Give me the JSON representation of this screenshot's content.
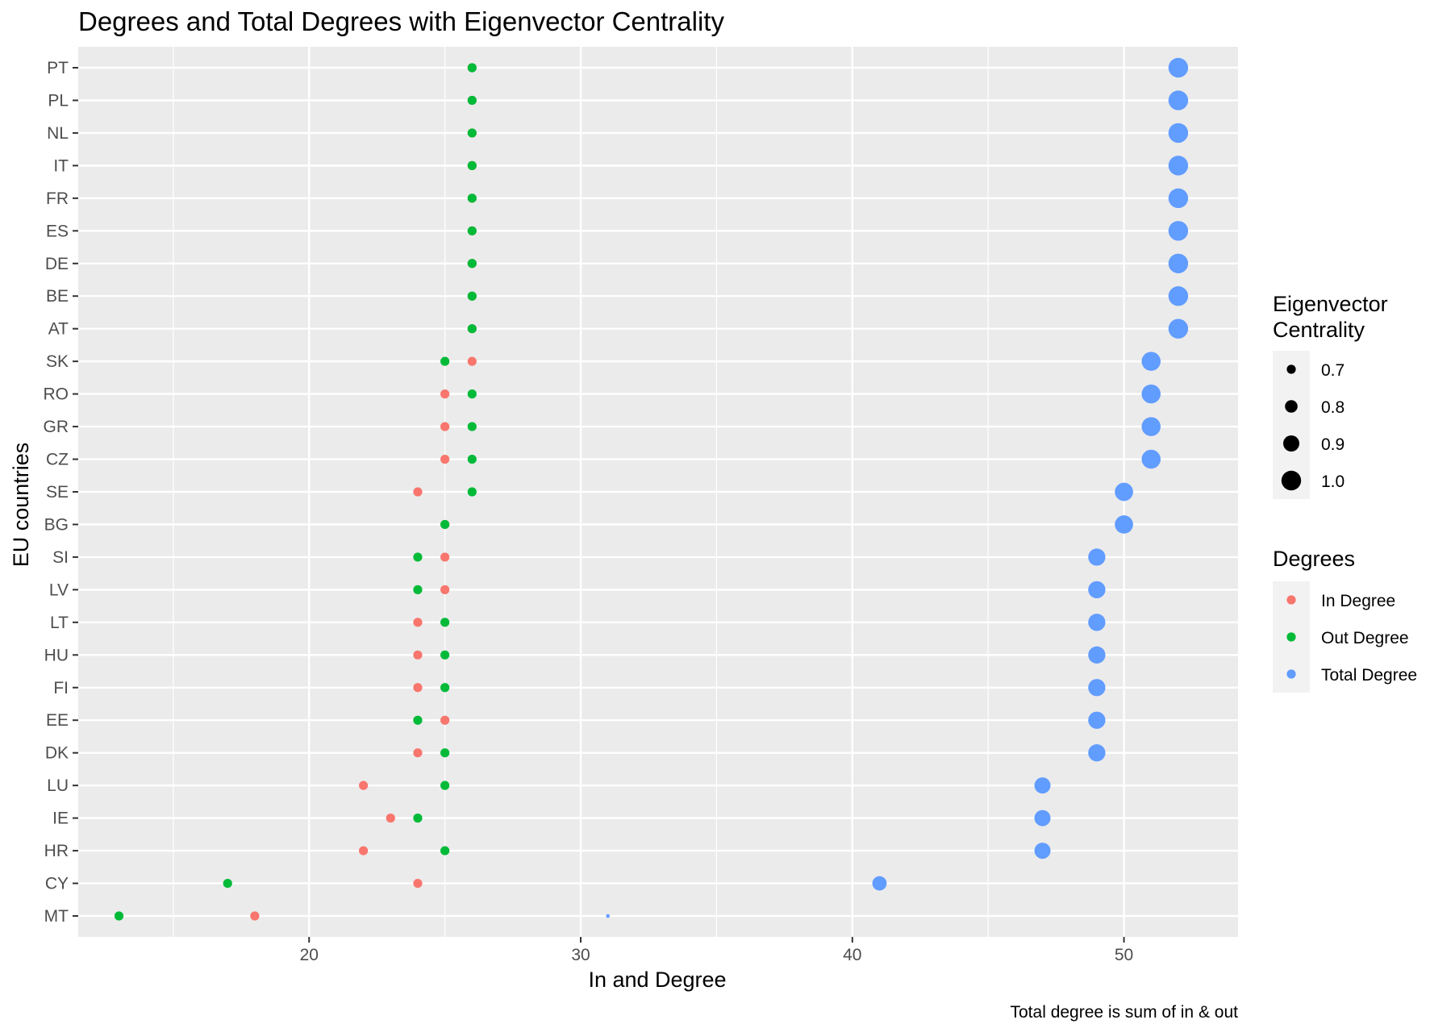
{
  "chart_data": {
    "type": "scatter",
    "title": "Degrees and Total Degrees with Eigenvector Centrality",
    "xlabel": "In and Degree",
    "ylabel": "EU countries",
    "caption": "Total degree is sum of in & out",
    "xlim": [
      11.5,
      54.2
    ],
    "x_ticks": [
      20,
      30,
      40,
      50
    ],
    "grid": true,
    "legend_position": "right",
    "size_legend": {
      "title_lines": [
        "Eigenvector",
        "Centrality"
      ],
      "entries": [
        "0.7",
        "0.8",
        "0.9",
        "1.0"
      ],
      "values": [
        0.7,
        0.8,
        0.9,
        1.0
      ]
    },
    "color_legend": {
      "title": "Degrees",
      "entries": [
        "In Degree",
        "Out Degree",
        "Total Degree"
      ]
    },
    "colors": {
      "In Degree": "#F8766D",
      "Out Degree": "#00BA38",
      "Total Degree": "#619CFF",
      "panel": "#EBEBEB",
      "grid": "#FFFFFF",
      "legend_key": "#F2F2F2"
    },
    "categories": [
      "MT",
      "CY",
      "HR",
      "IE",
      "LU",
      "DK",
      "EE",
      "FI",
      "HU",
      "LT",
      "LV",
      "SI",
      "BG",
      "SE",
      "CZ",
      "GR",
      "RO",
      "SK",
      "AT",
      "BE",
      "DE",
      "ES",
      "FR",
      "IT",
      "NL",
      "PL",
      "PT"
    ],
    "series": [
      {
        "name": "In Degree",
        "values": [
          18,
          24,
          22,
          23,
          22,
          24,
          25,
          24,
          24,
          24,
          25,
          25,
          25,
          24,
          25,
          25,
          25,
          26,
          26,
          26,
          26,
          26,
          26,
          26,
          26,
          26,
          26
        ]
      },
      {
        "name": "Out Degree",
        "values": [
          13,
          17,
          25,
          24,
          25,
          25,
          24,
          25,
          25,
          25,
          24,
          24,
          25,
          26,
          26,
          26,
          26,
          25,
          26,
          26,
          26,
          26,
          26,
          26,
          26,
          26,
          26
        ]
      },
      {
        "name": "Total Degree",
        "values": [
          31,
          41,
          47,
          47,
          47,
          49,
          49,
          49,
          49,
          49,
          49,
          49,
          50,
          50,
          51,
          51,
          51,
          51,
          52,
          52,
          52,
          52,
          52,
          52,
          52,
          52,
          52
        ]
      }
    ],
    "eigenvector_centrality": [
      0.55,
      0.85,
      0.9,
      0.9,
      0.9,
      0.93,
      0.93,
      0.93,
      0.93,
      0.93,
      0.93,
      0.93,
      0.96,
      0.96,
      0.98,
      0.98,
      0.98,
      0.98,
      1.0,
      1.0,
      1.0,
      1.0,
      1.0,
      1.0,
      1.0,
      1.0,
      1.0
    ]
  }
}
